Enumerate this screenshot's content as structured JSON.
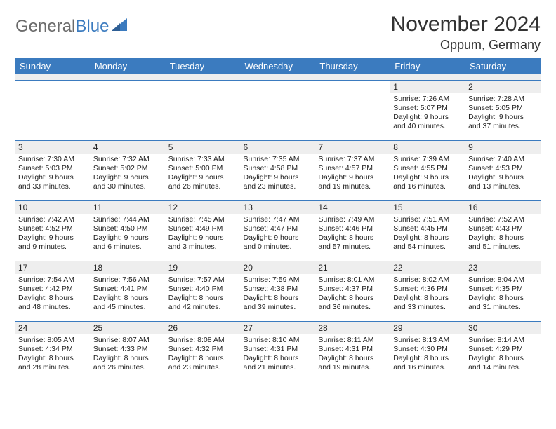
{
  "logo": {
    "word1": "General",
    "word2": "Blue"
  },
  "title": "November 2024",
  "location": "Oppum, Germany",
  "columns": [
    "Sunday",
    "Monday",
    "Tuesday",
    "Wednesday",
    "Thursday",
    "Friday",
    "Saturday"
  ],
  "colors": {
    "header_bg": "#3b7bbf",
    "header_fg": "#ffffff",
    "row_border": "#3b7bbf",
    "daynum_bg": "#eeeeee",
    "logo_gray": "#6b6b6b",
    "logo_blue": "#3b7bbf",
    "text": "#222222",
    "page_bg": "#ffffff"
  },
  "fonts": {
    "month_title_size": 30,
    "location_size": 18,
    "th_size": 13,
    "daynum_size": 12,
    "body_size": 10.5
  },
  "weeks": [
    [
      {
        "n": "",
        "sr": "",
        "ss": "",
        "dl": ""
      },
      {
        "n": "",
        "sr": "",
        "ss": "",
        "dl": ""
      },
      {
        "n": "",
        "sr": "",
        "ss": "",
        "dl": ""
      },
      {
        "n": "",
        "sr": "",
        "ss": "",
        "dl": ""
      },
      {
        "n": "",
        "sr": "",
        "ss": "",
        "dl": ""
      },
      {
        "n": "1",
        "sr": "Sunrise: 7:26 AM",
        "ss": "Sunset: 5:07 PM",
        "dl": "Daylight: 9 hours and 40 minutes."
      },
      {
        "n": "2",
        "sr": "Sunrise: 7:28 AM",
        "ss": "Sunset: 5:05 PM",
        "dl": "Daylight: 9 hours and 37 minutes."
      }
    ],
    [
      {
        "n": "3",
        "sr": "Sunrise: 7:30 AM",
        "ss": "Sunset: 5:03 PM",
        "dl": "Daylight: 9 hours and 33 minutes."
      },
      {
        "n": "4",
        "sr": "Sunrise: 7:32 AM",
        "ss": "Sunset: 5:02 PM",
        "dl": "Daylight: 9 hours and 30 minutes."
      },
      {
        "n": "5",
        "sr": "Sunrise: 7:33 AM",
        "ss": "Sunset: 5:00 PM",
        "dl": "Daylight: 9 hours and 26 minutes."
      },
      {
        "n": "6",
        "sr": "Sunrise: 7:35 AM",
        "ss": "Sunset: 4:58 PM",
        "dl": "Daylight: 9 hours and 23 minutes."
      },
      {
        "n": "7",
        "sr": "Sunrise: 7:37 AM",
        "ss": "Sunset: 4:57 PM",
        "dl": "Daylight: 9 hours and 19 minutes."
      },
      {
        "n": "8",
        "sr": "Sunrise: 7:39 AM",
        "ss": "Sunset: 4:55 PM",
        "dl": "Daylight: 9 hours and 16 minutes."
      },
      {
        "n": "9",
        "sr": "Sunrise: 7:40 AM",
        "ss": "Sunset: 4:53 PM",
        "dl": "Daylight: 9 hours and 13 minutes."
      }
    ],
    [
      {
        "n": "10",
        "sr": "Sunrise: 7:42 AM",
        "ss": "Sunset: 4:52 PM",
        "dl": "Daylight: 9 hours and 9 minutes."
      },
      {
        "n": "11",
        "sr": "Sunrise: 7:44 AM",
        "ss": "Sunset: 4:50 PM",
        "dl": "Daylight: 9 hours and 6 minutes."
      },
      {
        "n": "12",
        "sr": "Sunrise: 7:45 AM",
        "ss": "Sunset: 4:49 PM",
        "dl": "Daylight: 9 hours and 3 minutes."
      },
      {
        "n": "13",
        "sr": "Sunrise: 7:47 AM",
        "ss": "Sunset: 4:47 PM",
        "dl": "Daylight: 9 hours and 0 minutes."
      },
      {
        "n": "14",
        "sr": "Sunrise: 7:49 AM",
        "ss": "Sunset: 4:46 PM",
        "dl": "Daylight: 8 hours and 57 minutes."
      },
      {
        "n": "15",
        "sr": "Sunrise: 7:51 AM",
        "ss": "Sunset: 4:45 PM",
        "dl": "Daylight: 8 hours and 54 minutes."
      },
      {
        "n": "16",
        "sr": "Sunrise: 7:52 AM",
        "ss": "Sunset: 4:43 PM",
        "dl": "Daylight: 8 hours and 51 minutes."
      }
    ],
    [
      {
        "n": "17",
        "sr": "Sunrise: 7:54 AM",
        "ss": "Sunset: 4:42 PM",
        "dl": "Daylight: 8 hours and 48 minutes."
      },
      {
        "n": "18",
        "sr": "Sunrise: 7:56 AM",
        "ss": "Sunset: 4:41 PM",
        "dl": "Daylight: 8 hours and 45 minutes."
      },
      {
        "n": "19",
        "sr": "Sunrise: 7:57 AM",
        "ss": "Sunset: 4:40 PM",
        "dl": "Daylight: 8 hours and 42 minutes."
      },
      {
        "n": "20",
        "sr": "Sunrise: 7:59 AM",
        "ss": "Sunset: 4:38 PM",
        "dl": "Daylight: 8 hours and 39 minutes."
      },
      {
        "n": "21",
        "sr": "Sunrise: 8:01 AM",
        "ss": "Sunset: 4:37 PM",
        "dl": "Daylight: 8 hours and 36 minutes."
      },
      {
        "n": "22",
        "sr": "Sunrise: 8:02 AM",
        "ss": "Sunset: 4:36 PM",
        "dl": "Daylight: 8 hours and 33 minutes."
      },
      {
        "n": "23",
        "sr": "Sunrise: 8:04 AM",
        "ss": "Sunset: 4:35 PM",
        "dl": "Daylight: 8 hours and 31 minutes."
      }
    ],
    [
      {
        "n": "24",
        "sr": "Sunrise: 8:05 AM",
        "ss": "Sunset: 4:34 PM",
        "dl": "Daylight: 8 hours and 28 minutes."
      },
      {
        "n": "25",
        "sr": "Sunrise: 8:07 AM",
        "ss": "Sunset: 4:33 PM",
        "dl": "Daylight: 8 hours and 26 minutes."
      },
      {
        "n": "26",
        "sr": "Sunrise: 8:08 AM",
        "ss": "Sunset: 4:32 PM",
        "dl": "Daylight: 8 hours and 23 minutes."
      },
      {
        "n": "27",
        "sr": "Sunrise: 8:10 AM",
        "ss": "Sunset: 4:31 PM",
        "dl": "Daylight: 8 hours and 21 minutes."
      },
      {
        "n": "28",
        "sr": "Sunrise: 8:11 AM",
        "ss": "Sunset: 4:31 PM",
        "dl": "Daylight: 8 hours and 19 minutes."
      },
      {
        "n": "29",
        "sr": "Sunrise: 8:13 AM",
        "ss": "Sunset: 4:30 PM",
        "dl": "Daylight: 8 hours and 16 minutes."
      },
      {
        "n": "30",
        "sr": "Sunrise: 8:14 AM",
        "ss": "Sunset: 4:29 PM",
        "dl": "Daylight: 8 hours and 14 minutes."
      }
    ]
  ]
}
